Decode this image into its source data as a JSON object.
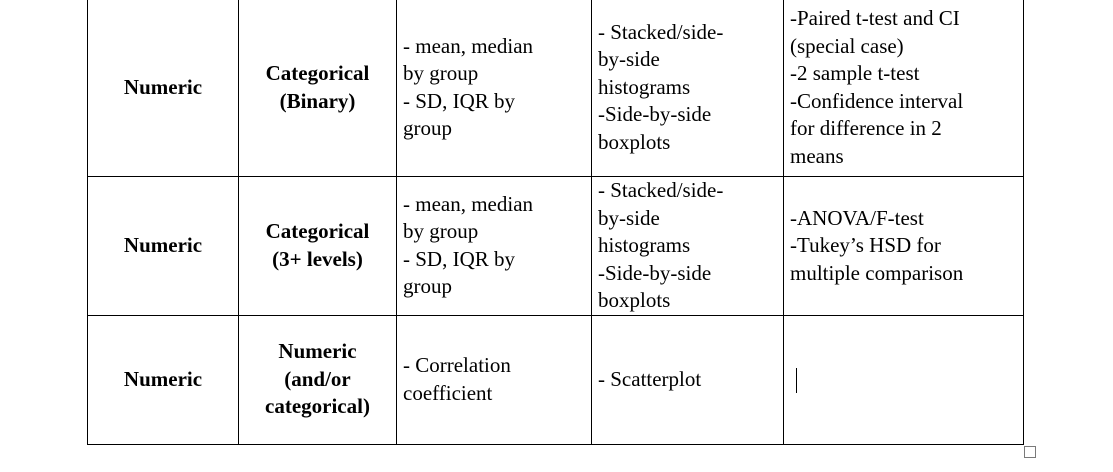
{
  "table": {
    "rows": [
      {
        "response": [
          "Numeric"
        ],
        "explanatory": [
          "Categorical",
          "(Binary)"
        ],
        "numerical_summary": [
          "- mean, median",
          "by group",
          "- SD, IQR by",
          "group"
        ],
        "graphical_summary": [
          "- Stacked/side-",
          "by-side",
          "histograms",
          "-Side-by-side",
          "boxplots"
        ],
        "inference": [
          "-Paired t-test and CI",
          "(special case)",
          "-2 sample t-test",
          "-Confidence interval",
          "for difference in 2",
          "means"
        ]
      },
      {
        "response": [
          "Numeric"
        ],
        "explanatory": [
          "Categorical",
          "(3+ levels)"
        ],
        "numerical_summary": [
          "- mean, median",
          "by group",
          "- SD, IQR by",
          "group"
        ],
        "graphical_summary": [
          "- Stacked/side-",
          "by-side",
          "histograms",
          "-Side-by-side",
          "boxplots"
        ],
        "inference": [
          "-ANOVA/F-test",
          "-Tukey’s HSD for",
          "multiple comparison"
        ]
      },
      {
        "response": [
          "Numeric"
        ],
        "explanatory": [
          "Numeric",
          "(and/or",
          "categorical)"
        ],
        "numerical_summary": [
          "- Correlation",
          "coefficient"
        ],
        "graphical_summary": [
          "- Scatterplot"
        ],
        "inference": []
      }
    ]
  }
}
